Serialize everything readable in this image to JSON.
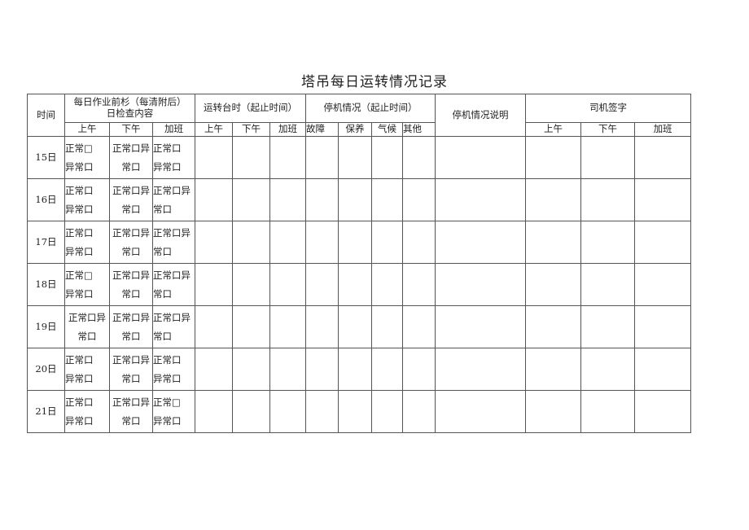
{
  "title": "塔吊每日运转情况记录",
  "header": {
    "time": "时间",
    "check_line1": "每日作业前杉（每清附后）",
    "check_line2": "日检查内容",
    "runtime": "运转台时（起止时间）",
    "stop": "停机情况（起止时间）",
    "stop_desc": "停机情况说明",
    "driver": "司机签字",
    "sub": [
      "上午",
      "下午",
      "加班",
      "上午",
      "下午",
      "加班",
      "故障",
      "保养",
      "气候",
      "其他",
      "上午",
      "下午",
      "加班"
    ]
  },
  "rows": [
    {
      "day": "15日",
      "c": [
        [
          "正常□",
          "异常口"
        ],
        [
          "正常口异",
          "常口"
        ],
        [
          "正常口",
          "异常口"
        ]
      ]
    },
    {
      "day": "16日",
      "c": [
        [
          "正常口",
          "异常口"
        ],
        [
          "正常口异",
          "常口"
        ],
        [
          "正常口异",
          "常口"
        ]
      ]
    },
    {
      "day": "17日",
      "c": [
        [
          "正常口",
          "异常口"
        ],
        [
          "正常口异",
          "常口"
        ],
        [
          "正常口异",
          "常口"
        ]
      ]
    },
    {
      "day": "18日",
      "c": [
        [
          "正常□",
          "异常口"
        ],
        [
          "正常口异",
          "常口"
        ],
        [
          "正常口异",
          "常口"
        ]
      ]
    },
    {
      "day": "19日",
      "c": [
        [
          "正常口异",
          "常口"
        ],
        [
          "正常口异",
          "常口"
        ],
        [
          "正常口异",
          "常口"
        ]
      ]
    },
    {
      "day": "20日",
      "c": [
        [
          "正常口",
          "异常口"
        ],
        [
          "正常口异",
          "常口"
        ],
        [
          "正常口",
          "异常口"
        ]
      ]
    },
    {
      "day": "21日",
      "c": [
        [
          "正常口",
          "异常口"
        ],
        [
          "正常口异",
          "常口"
        ],
        [
          "正常□",
          "异常口"
        ]
      ]
    }
  ]
}
